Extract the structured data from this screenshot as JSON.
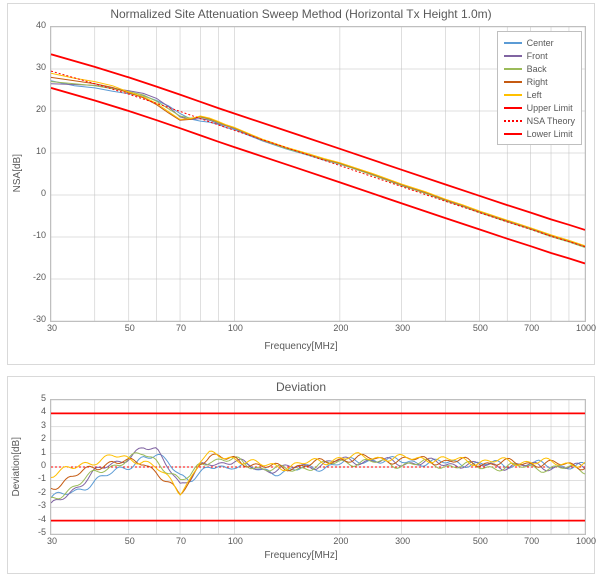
{
  "global": {
    "background_color": "#ffffff",
    "frame_border_color": "#d9d9d9",
    "axis_color": "#bfbfbf",
    "grid_color": "#bfbfbf",
    "text_color": "#595959",
    "font_family": "Segoe UI, Arial, sans-serif",
    "title_fontsize": 12,
    "tick_fontsize": 9,
    "axis_label_fontsize": 10
  },
  "chart_top": {
    "title": "Normalized Site Attenuation Sweep Method (Horizontal Tx Height 1.0m)",
    "type": "line",
    "xscale": "log",
    "xlabel": "Frequency[MHz]",
    "ylabel": "NSA[dB]",
    "xlim": [
      30,
      1000
    ],
    "ylim": [
      -30,
      40
    ],
    "x_ticks": [
      30,
      50,
      70,
      100,
      200,
      300,
      500,
      700,
      1000
    ],
    "x_tick_labels": [
      "30",
      "50",
      "70",
      "100",
      "200",
      "300",
      "500",
      "700",
      "1000"
    ],
    "y_tick_step": 10,
    "y_ticks": [
      -30,
      -20,
      -10,
      0,
      10,
      20,
      30,
      40
    ],
    "grid": true,
    "legend": {
      "position": "top-right",
      "items": [
        {
          "label": "Center",
          "color": "#5b9bd5",
          "dash": "solid"
        },
        {
          "label": "Front",
          "color": "#8064a2",
          "dash": "solid"
        },
        {
          "label": "Back",
          "color": "#9bbb59",
          "dash": "solid"
        },
        {
          "label": "Right",
          "color": "#c55a11",
          "dash": "solid"
        },
        {
          "label": "Left",
          "color": "#ffc000",
          "dash": "solid"
        },
        {
          "label": "Upper Limit",
          "color": "#ff0000",
          "dash": "solid"
        },
        {
          "label": "NSA Theory",
          "color": "#ff0000",
          "dash": "dotted"
        },
        {
          "label": "Lower Limit",
          "color": "#ff0000",
          "dash": "solid"
        }
      ]
    },
    "series": {
      "upper": {
        "color": "#ff0000",
        "width": 1.8,
        "dash": "solid",
        "x": [
          30,
          40,
          50,
          60,
          70,
          80,
          90,
          100,
          150,
          200,
          300,
          400,
          500,
          600,
          700,
          800,
          900,
          1000
        ],
        "y": [
          33.5,
          30.5,
          28.0,
          25.8,
          23.9,
          22.2,
          20.7,
          19.4,
          14.5,
          11.0,
          6.0,
          2.5,
          -0.2,
          -2.4,
          -4.2,
          -5.8,
          -7.1,
          -8.3
        ]
      },
      "theory": {
        "color": "#ff0000",
        "width": 1.0,
        "dash": "dotted",
        "x": [
          30,
          40,
          50,
          60,
          70,
          80,
          90,
          100,
          150,
          200,
          300,
          400,
          500,
          600,
          700,
          800,
          900,
          1000
        ],
        "y": [
          29.5,
          26.5,
          24.0,
          21.8,
          19.9,
          18.2,
          16.7,
          15.4,
          10.5,
          7.0,
          2.0,
          -1.5,
          -4.2,
          -6.4,
          -8.2,
          -9.8,
          -11.1,
          -12.3
        ]
      },
      "lower": {
        "color": "#ff0000",
        "width": 1.8,
        "dash": "solid",
        "x": [
          30,
          40,
          50,
          60,
          70,
          80,
          90,
          100,
          150,
          200,
          300,
          400,
          500,
          600,
          700,
          800,
          900,
          1000
        ],
        "y": [
          25.5,
          22.5,
          20.0,
          17.8,
          15.9,
          14.2,
          12.7,
          11.4,
          6.5,
          3.0,
          -2.0,
          -5.5,
          -8.2,
          -10.4,
          -12.2,
          -13.8,
          -15.1,
          -16.3
        ]
      },
      "center": {
        "color": "#5b9bd5",
        "width": 1.0,
        "x": [
          30,
          35,
          40,
          45,
          50,
          55,
          60,
          65,
          70,
          75,
          80,
          85,
          90,
          95,
          100,
          120,
          140,
          160,
          180,
          200,
          250,
          300,
          350,
          400,
          450,
          500,
          600,
          700,
          800,
          900,
          1000
        ],
        "y": [
          27.2,
          26.0,
          25.5,
          24.7,
          24.1,
          23.6,
          22.5,
          21.2,
          19.4,
          18.1,
          17.6,
          17.3,
          16.8,
          16.0,
          15.6,
          12.9,
          11.0,
          9.6,
          8.3,
          7.3,
          4.8,
          2.4,
          0.5,
          -1.2,
          -2.6,
          -4.0,
          -6.2,
          -8.0,
          -9.7,
          -11.0,
          -12.3
        ]
      },
      "front": {
        "color": "#8064a2",
        "width": 1.0,
        "x": [
          30,
          35,
          40,
          45,
          50,
          55,
          60,
          65,
          70,
          75,
          80,
          85,
          90,
          95,
          100,
          120,
          140,
          160,
          180,
          200,
          250,
          300,
          350,
          400,
          450,
          500,
          600,
          700,
          800,
          900,
          1000
        ],
        "y": [
          26.5,
          26.3,
          26.1,
          25.4,
          24.8,
          24.2,
          23.0,
          21.0,
          18.6,
          18.0,
          18.2,
          17.8,
          17.0,
          16.4,
          15.8,
          13.0,
          11.2,
          9.8,
          8.5,
          7.5,
          4.7,
          2.3,
          0.5,
          -1.3,
          -2.7,
          -4.1,
          -6.3,
          -8.1,
          -9.8,
          -11.1,
          -12.4
        ]
      },
      "back": {
        "color": "#9bbb59",
        "width": 1.0,
        "x": [
          30,
          35,
          40,
          45,
          50,
          55,
          60,
          65,
          70,
          75,
          80,
          85,
          90,
          95,
          100,
          120,
          140,
          160,
          180,
          200,
          250,
          300,
          350,
          400,
          450,
          500,
          600,
          700,
          800,
          900,
          1000
        ],
        "y": [
          27.0,
          26.5,
          26.0,
          25.3,
          24.6,
          23.8,
          22.3,
          20.5,
          18.8,
          18.3,
          18.5,
          18.0,
          17.2,
          16.5,
          15.9,
          13.1,
          11.1,
          9.7,
          8.4,
          7.4,
          4.6,
          2.2,
          0.4,
          -1.4,
          -2.8,
          -4.2,
          -6.4,
          -8.2,
          -9.9,
          -11.2,
          -12.5
        ]
      },
      "right": {
        "color": "#c55a11",
        "width": 1.0,
        "x": [
          30,
          35,
          40,
          45,
          50,
          55,
          60,
          65,
          70,
          75,
          80,
          85,
          90,
          95,
          100,
          120,
          140,
          160,
          180,
          200,
          250,
          300,
          350,
          400,
          450,
          500,
          600,
          700,
          800,
          900,
          1000
        ],
        "y": [
          28.0,
          27.2,
          26.5,
          25.6,
          24.3,
          23.2,
          21.5,
          19.5,
          17.8,
          18.0,
          18.7,
          18.2,
          17.4,
          16.6,
          16.0,
          13.2,
          11.3,
          9.9,
          8.6,
          7.6,
          4.9,
          2.5,
          0.7,
          -1.1,
          -2.5,
          -3.9,
          -6.1,
          -7.9,
          -9.6,
          -10.9,
          -12.2
        ]
      },
      "left": {
        "color": "#ffc000",
        "width": 1.0,
        "x": [
          30,
          35,
          40,
          45,
          50,
          55,
          60,
          65,
          70,
          75,
          80,
          85,
          90,
          95,
          100,
          120,
          140,
          160,
          180,
          200,
          250,
          300,
          350,
          400,
          450,
          500,
          600,
          700,
          800,
          900,
          1000
        ],
        "y": [
          29.0,
          27.8,
          27.0,
          26.0,
          24.5,
          23.4,
          21.8,
          19.8,
          18.0,
          18.2,
          18.8,
          18.3,
          17.5,
          16.7,
          16.1,
          13.3,
          11.4,
          10.0,
          8.7,
          7.7,
          5.0,
          2.6,
          0.8,
          -1.0,
          -2.4,
          -3.8,
          -6.0,
          -7.8,
          -9.5,
          -10.8,
          -12.1
        ]
      }
    }
  },
  "chart_bottom": {
    "title": "Deviation",
    "type": "line",
    "xscale": "log",
    "xlabel": "Frequency[MHz]",
    "ylabel": "Deviation[dB]",
    "xlim": [
      30,
      1000
    ],
    "ylim": [
      -5,
      5
    ],
    "x_ticks": [
      30,
      50,
      70,
      100,
      200,
      300,
      500,
      700,
      1000
    ],
    "x_tick_labels": [
      "30",
      "50",
      "70",
      "100",
      "200",
      "300",
      "500",
      "700",
      "1000"
    ],
    "y_tick_step": 1,
    "y_ticks": [
      -5,
      -4,
      -3,
      -2,
      -1,
      0,
      1,
      2,
      3,
      4,
      5
    ],
    "grid": true,
    "limits": {
      "upper": {
        "value": 4,
        "color": "#ff0000",
        "width": 1.8
      },
      "zero": {
        "value": 0,
        "color": "#ff0000",
        "width": 1.0,
        "dash": "dotted"
      },
      "lower": {
        "value": -4,
        "color": "#ff0000",
        "width": 1.8
      }
    },
    "series": {
      "center": {
        "color": "#5b9bd5"
      },
      "front": {
        "color": "#8064a2"
      },
      "back": {
        "color": "#9bbb59"
      },
      "right": {
        "color": "#c55a11"
      },
      "left": {
        "color": "#ffc000"
      }
    },
    "noise": {
      "amp": 0.35,
      "period": 26
    }
  }
}
